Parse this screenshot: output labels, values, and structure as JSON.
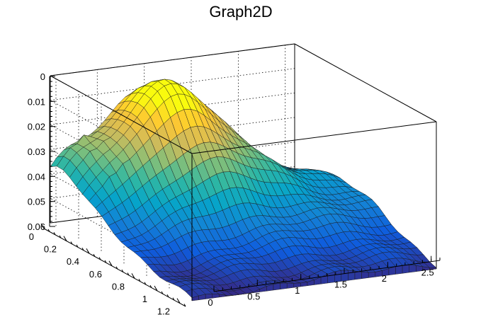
{
  "chart_data": {
    "type": "surface",
    "title": "Graph2D",
    "xlabel": "",
    "ylabel": "",
    "zlabel": "",
    "xlim": [
      0,
      2.6
    ],
    "ylim": [
      0,
      1.25
    ],
    "zlim": [
      0,
      0.06
    ],
    "x_ticks": [
      "0",
      "0.5",
      "1",
      "1.5",
      "2",
      "2.5"
    ],
    "y_ticks": [
      "0",
      "0.2",
      "0.4",
      "0.6",
      "0.8",
      "1",
      "1.2"
    ],
    "z_ticks": [
      "0",
      "0.01",
      "0.02",
      "0.03",
      "0.04",
      "0.05",
      "0.06"
    ],
    "grid": true,
    "colormap": [
      "#352a87",
      "#0f5cdd",
      "#1481d6",
      "#06a4ca",
      "#2eb7a4",
      "#87bf77",
      "#d1bb59",
      "#fec832",
      "#f9fb0e"
    ],
    "surface_description": "peak ~0.052 near x=0.9, y=1.1; ridge from near corner (x=0,y=0,z~0.003) rising to the back; right edge near x=2.6 about 0.015"
  }
}
